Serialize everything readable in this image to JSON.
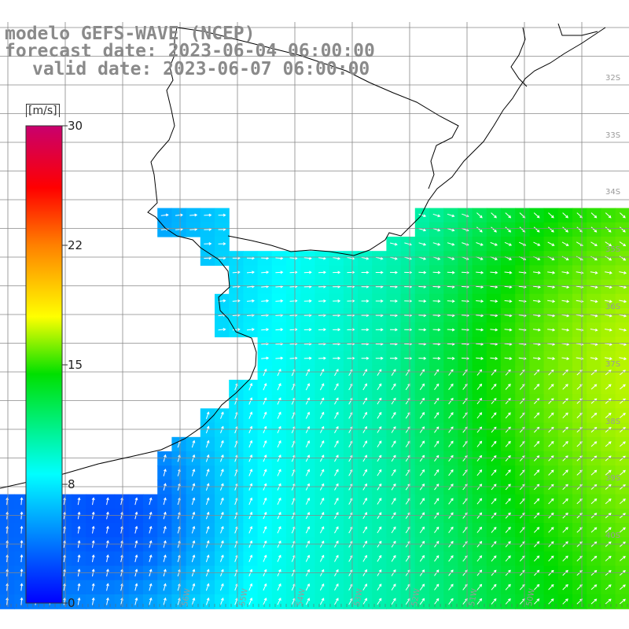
{
  "title": {
    "line1": "modelo GEFS-WAVE (NCEP)",
    "line2": "forecast date: 2023-06-04 06:00:00",
    "line3": "valid date: 2023-06-07 06:00:00"
  },
  "colorbar": {
    "unit": "[m/s]",
    "ticks": [
      "30",
      "22",
      "15",
      "8",
      "0"
    ],
    "colors": [
      "#0000ff",
      "#00a0ff",
      "#00ffff",
      "#00ff00",
      "#ffff00",
      "#ff8000",
      "#ff0000",
      "#cc0080"
    ]
  },
  "grid": {
    "lat_labels": [
      "32S",
      "33S",
      "34S",
      "35S",
      "36S",
      "37S",
      "38S",
      "39S",
      "40S"
    ],
    "lon_labels": [
      "56W",
      "55W",
      "54W",
      "53W",
      "52W",
      "51W",
      "50W"
    ]
  },
  "colors": {
    "land": "#ffffff",
    "coast": "#000000",
    "gridline": "#8a8a8a",
    "arrow": "#ffffff"
  }
}
